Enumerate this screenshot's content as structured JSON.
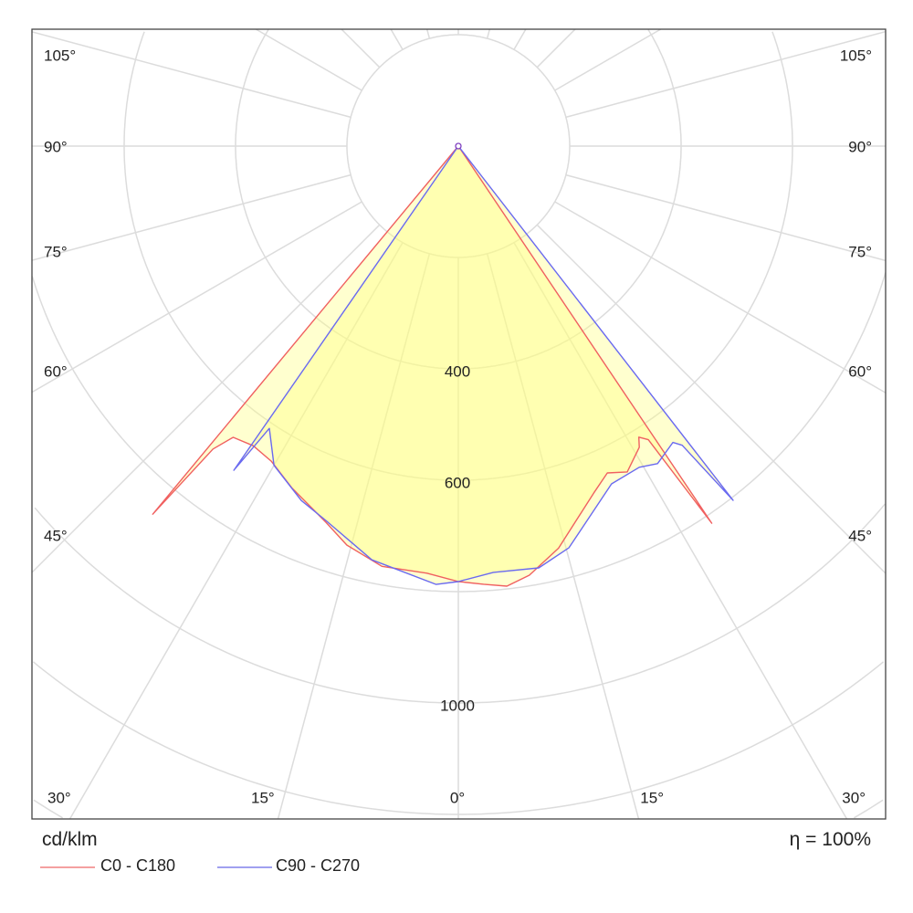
{
  "chart_data": {
    "type": "polar",
    "unit_label": "cd/klm",
    "efficiency_label": "η = 100%",
    "radial_ticks": [
      {
        "value": 400,
        "label": "400"
      },
      {
        "value": 600,
        "label": "600"
      },
      {
        "value": 1000,
        "label": "1000"
      }
    ],
    "radial_grid": [
      200,
      400,
      600,
      800,
      1000,
      1200,
      1400
    ],
    "angle_grid_step_deg": 15,
    "angle_labels_left": [
      {
        "angle": 105,
        "label": "105°"
      },
      {
        "angle": 90,
        "label": "90°"
      },
      {
        "angle": 75,
        "label": "75°"
      },
      {
        "angle": 60,
        "label": "60°"
      },
      {
        "angle": 45,
        "label": "45°"
      },
      {
        "angle": 30,
        "label": "30°"
      },
      {
        "angle": 15,
        "label": "15°"
      }
    ],
    "angle_label_zero": "0°",
    "angle_labels_right": [
      {
        "angle": 105,
        "label": "105°"
      },
      {
        "angle": 90,
        "label": "90°"
      },
      {
        "angle": 75,
        "label": "75°"
      },
      {
        "angle": 60,
        "label": "60°"
      },
      {
        "angle": 45,
        "label": "45°"
      },
      {
        "angle": 30,
        "label": "30°"
      },
      {
        "angle": 15,
        "label": "15°"
      }
    ],
    "grid": true,
    "legend_position": "bottom-left",
    "series": [
      {
        "name": "C0 - C180",
        "color": "#f06060",
        "points": [
          [
            -40,
            0
          ],
          [
            -39.7,
            859
          ],
          [
            -39,
            700
          ],
          [
            -37.7,
            661
          ],
          [
            -34.4,
            652
          ],
          [
            -30.7,
            658
          ],
          [
            -25.9,
            683
          ],
          [
            -19.4,
            716
          ],
          [
            -15.6,
            744
          ],
          [
            -10.3,
            767
          ],
          [
            -4.2,
            769
          ],
          [
            0,
            782
          ],
          [
            3.3,
            788
          ],
          [
            6.3,
            795
          ],
          [
            9.4,
            781
          ],
          [
            14,
            744
          ],
          [
            21.3,
            669
          ],
          [
            24.5,
            645
          ],
          [
            27.4,
            659
          ],
          [
            31,
            631
          ],
          [
            31.8,
            615
          ],
          [
            32.9,
            628
          ],
          [
            33.9,
            816
          ],
          [
            34,
            0
          ]
        ]
      },
      {
        "name": "C90 - C270",
        "color": "#6a6af0",
        "points": [
          [
            -35,
            0
          ],
          [
            -34.7,
            708
          ],
          [
            -33.8,
            610
          ],
          [
            -30,
            662
          ],
          [
            -23.9,
            696
          ],
          [
            -19.5,
            713
          ],
          [
            -11.8,
            759
          ],
          [
            -2.9,
            788
          ],
          [
            0,
            782
          ],
          [
            4.7,
            768
          ],
          [
            10.8,
            771
          ],
          [
            15.4,
            748
          ],
          [
            24.4,
            666
          ],
          [
            29.4,
            662
          ],
          [
            32.1,
            673
          ],
          [
            35.9,
            657
          ],
          [
            36.8,
            671
          ],
          [
            37.8,
            805
          ],
          [
            38,
            0
          ]
        ]
      }
    ],
    "fill_color": "#ffff80"
  }
}
